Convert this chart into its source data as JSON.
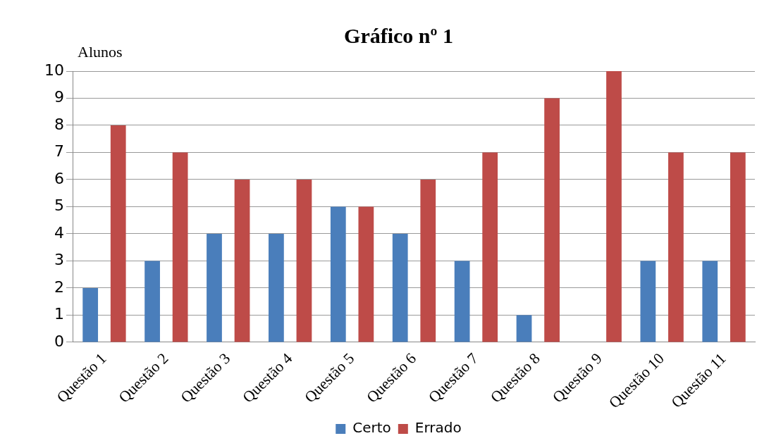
{
  "chart_data": {
    "type": "bar",
    "title": "Gráfico nº 1",
    "ylabel": "Alunos",
    "categories": [
      "Questão 1",
      "Questão 2",
      "Questão 3",
      "Questão 4",
      "Questão 5",
      "Questão 6",
      "Questão 7",
      "Questão 8",
      "Questão 9",
      "Questão 10",
      "Questão 11"
    ],
    "series": [
      {
        "name": "Certo",
        "color": "#4a7ebb",
        "values": [
          2,
          3,
          4,
          4,
          5,
          4,
          3,
          1,
          0,
          3,
          3
        ]
      },
      {
        "name": "Errado",
        "color": "#be4b48",
        "values": [
          8,
          7,
          6,
          6,
          5,
          6,
          7,
          9,
          10,
          7,
          7
        ]
      }
    ],
    "ylim": [
      0,
      10
    ],
    "yticks": [
      0,
      1,
      2,
      3,
      4,
      5,
      6,
      7,
      8,
      9,
      10
    ],
    "grid": "y",
    "legend": "bottom"
  }
}
